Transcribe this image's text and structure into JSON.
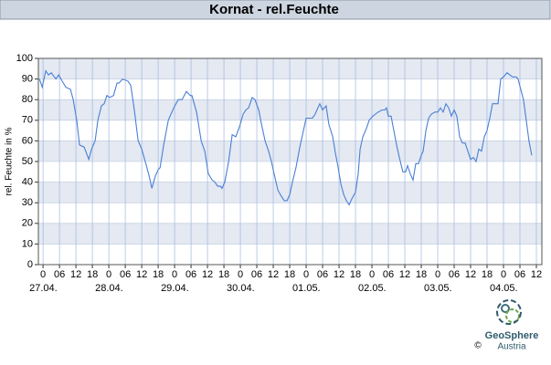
{
  "chart_data": {
    "type": "line",
    "title": "Kornat - rel.Feuchte",
    "y_label": "rel. Feuchte in %",
    "series": [
      {
        "color": "#4a7fd6",
        "x": [
          -1.3,
          -0.3,
          1,
          2,
          3,
          4.7,
          5.7,
          7,
          8.3,
          10,
          11,
          12.3,
          13.3,
          15,
          16.7,
          17.7,
          19,
          20,
          21.3,
          22.3,
          23.3,
          24.3,
          25.7,
          27,
          27.7,
          29,
          31,
          32,
          33.3,
          34.7,
          36,
          37.7,
          38.7,
          39.7,
          41,
          42,
          42.7,
          44,
          45.7,
          47,
          47.7,
          49.3,
          50.7,
          52.3,
          53.7,
          54.3,
          56,
          57.7,
          59,
          60.3,
          61.7,
          62.7,
          63.7,
          64.7,
          65.3,
          66.3,
          67.7,
          69,
          70.3,
          71.7,
          73,
          74,
          75,
          76.3,
          77.3,
          78.7,
          79.7,
          81,
          82.3,
          83.3,
          84.3,
          85.7,
          87,
          88,
          89,
          90,
          91,
          92.3,
          93.7,
          94.7,
          96,
          97.3,
          98.3,
          99.3,
          100.3,
          101,
          102,
          103.3,
          104.3,
          105.7,
          106.7,
          107.7,
          108.7,
          109.7,
          110.7,
          111.7,
          112.7,
          114,
          115,
          115.7,
          116.7,
          118,
          119,
          120.3,
          121.3,
          122.3,
          123.7,
          124.7,
          125.3,
          126,
          127,
          128,
          129,
          130,
          131.3,
          132.3,
          133,
          134,
          135,
          136,
          137,
          138,
          138.7,
          139.7,
          140.7,
          141.7,
          143,
          144,
          145,
          146,
          147,
          148,
          149,
          150,
          151,
          152,
          153,
          154,
          155,
          156,
          157,
          158,
          159,
          160,
          161,
          162,
          163,
          164,
          165,
          166,
          167,
          168,
          169.3,
          170.3,
          171.3,
          172.7,
          173.3,
          174.3,
          175.3,
          176.3,
          177.3,
          178.3
        ],
        "values": [
          90,
          86,
          94,
          92,
          93,
          90,
          92,
          89,
          86,
          85,
          80,
          70,
          58,
          57,
          51,
          56,
          60,
          70,
          77,
          78,
          82,
          81,
          82,
          88,
          88,
          90,
          89,
          87,
          75,
          60,
          56,
          48,
          43,
          37,
          43,
          46,
          47,
          58,
          70,
          74,
          76,
          80,
          80,
          84,
          82,
          82,
          74,
          60,
          55,
          44,
          41,
          40,
          38,
          38,
          37,
          40,
          50,
          63,
          62,
          67,
          73,
          75,
          76,
          81,
          80,
          75,
          68,
          60,
          55,
          50,
          44,
          36,
          33,
          31,
          31,
          34,
          40,
          47,
          57,
          63,
          71,
          71,
          71,
          73,
          76,
          78,
          75,
          77,
          68,
          62,
          54,
          47,
          39,
          34,
          31,
          29,
          32,
          35,
          44,
          56,
          62,
          66,
          70,
          72,
          73,
          74,
          75,
          75,
          76,
          72,
          72,
          65,
          58,
          52,
          45,
          45,
          48,
          44,
          41,
          49,
          49,
          53,
          55,
          65,
          71,
          73,
          74,
          74,
          76,
          74,
          78,
          76,
          72,
          75,
          72,
          62,
          59,
          59,
          55,
          51,
          52,
          50,
          56,
          55,
          62,
          65,
          71,
          78,
          78,
          78,
          90,
          91,
          93,
          92,
          91,
          91,
          90,
          85,
          80,
          70,
          60,
          53
        ]
      }
    ],
    "xlim": [
      -1.7,
      182
    ],
    "ylim": [
      0,
      100
    ],
    "yticks": [
      0,
      10,
      20,
      30,
      40,
      50,
      60,
      70,
      80,
      90,
      100
    ],
    "xticks": [
      0,
      {
        "value": 6,
        "label": "06"
      },
      12,
      18,
      {
        "value": 24,
        "label": "0"
      },
      {
        "value": 30,
        "label": "06"
      },
      {
        "value": 36,
        "label": "12"
      },
      {
        "value": 42,
        "label": "18"
      },
      {
        "value": 48,
        "label": "0"
      },
      {
        "value": 54,
        "label": "06"
      },
      {
        "value": 60,
        "label": "12"
      },
      {
        "value": 66,
        "label": "18"
      },
      {
        "value": 72,
        "label": "0"
      },
      {
        "value": 78,
        "label": "06"
      },
      {
        "value": 84,
        "label": "12"
      },
      {
        "value": 90,
        "label": "18"
      },
      {
        "value": 96,
        "label": "0"
      },
      {
        "value": 102,
        "label": "06"
      },
      {
        "value": 108,
        "label": "12"
      },
      {
        "value": 114,
        "label": "18"
      },
      {
        "value": 120,
        "label": "0"
      },
      {
        "value": 126,
        "label": "06"
      },
      {
        "value": 132,
        "label": "12"
      },
      {
        "value": 138,
        "label": "18"
      },
      {
        "value": 144,
        "label": "0"
      },
      {
        "value": 150,
        "label": "06"
      },
      {
        "value": 156,
        "label": "12"
      },
      {
        "value": 162,
        "label": "18"
      },
      {
        "value": 168,
        "label": "0"
      },
      {
        "value": 174,
        "label": "06"
      },
      {
        "value": 180,
        "label": "12"
      }
    ],
    "date_ticks": [
      {
        "value": 0,
        "label": "27.04."
      },
      {
        "value": 24,
        "label": "28.04."
      },
      {
        "value": 48,
        "label": "29.04."
      },
      {
        "value": 72,
        "label": "30.04."
      },
      {
        "value": 96,
        "label": "01.05."
      },
      {
        "value": 120,
        "label": "02.05."
      },
      {
        "value": 144,
        "label": "03.05."
      },
      {
        "value": 168,
        "label": "04.05."
      }
    ],
    "grid": true
  },
  "logo": {
    "name": "GeoSphere",
    "sub": "Austria",
    "copyright": "©"
  }
}
